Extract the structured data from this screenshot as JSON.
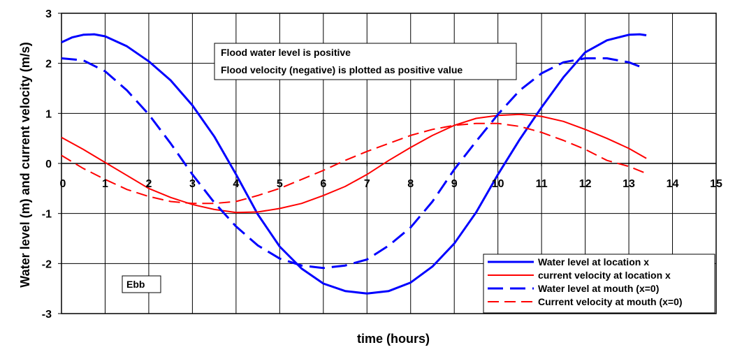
{
  "chart_data": {
    "type": "line",
    "xlabel": "time (hours)",
    "ylabel": "Water level (m) and current velocity (m/s)",
    "xlim": [
      0,
      15
    ],
    "ylim": [
      -3,
      3
    ],
    "xticks": [
      0,
      1,
      2,
      3,
      4,
      5,
      6,
      7,
      8,
      9,
      10,
      11,
      12,
      13,
      14,
      15
    ],
    "yticks": [
      -3,
      -2,
      -1,
      0,
      1,
      2,
      3
    ],
    "grid": true,
    "legend_position": "bottom-right",
    "annotations": [
      "Flood water level is positive",
      "Flood velocity (negative) is plotted as positive value"
    ],
    "label_ebb": "Ebb",
    "series": [
      {
        "name": "Water level at location x",
        "color": "#0000ff",
        "style": "solid",
        "x": [
          0,
          0.25,
          0.5,
          0.75,
          1,
          1.5,
          2,
          2.5,
          3,
          3.5,
          4,
          4.5,
          5,
          5.5,
          6,
          6.5,
          7,
          7.5,
          8,
          8.5,
          9,
          9.5,
          10,
          10.5,
          11,
          11.5,
          12,
          12.5,
          13,
          13.25,
          13.4
        ],
        "y": [
          2.42,
          2.52,
          2.57,
          2.58,
          2.54,
          2.34,
          2.04,
          1.66,
          1.16,
          0.54,
          -0.22,
          -1.02,
          -1.66,
          -2.1,
          -2.4,
          -2.55,
          -2.6,
          -2.55,
          -2.38,
          -2.06,
          -1.6,
          -0.98,
          -0.22,
          0.48,
          1.12,
          1.72,
          2.22,
          2.46,
          2.57,
          2.58,
          2.56
        ]
      },
      {
        "name": "current velocity at location x",
        "color": "#ff0000",
        "style": "solid",
        "x": [
          0,
          0.5,
          1,
          1.5,
          2,
          2.5,
          3,
          3.5,
          4,
          4.5,
          5,
          5.5,
          6,
          6.5,
          7,
          7.5,
          8,
          8.5,
          9,
          9.5,
          10,
          10.5,
          11,
          11.5,
          12,
          12.5,
          13,
          13.4
        ],
        "y": [
          0.52,
          0.28,
          0.02,
          -0.24,
          -0.5,
          -0.68,
          -0.82,
          -0.92,
          -0.98,
          -0.97,
          -0.9,
          -0.8,
          -0.64,
          -0.46,
          -0.22,
          0.06,
          0.32,
          0.56,
          0.76,
          0.9,
          0.96,
          0.98,
          0.94,
          0.84,
          0.68,
          0.5,
          0.3,
          0.1
        ]
      },
      {
        "name": "Water level at mouth (x=0)",
        "color": "#0000ff",
        "style": "dashed",
        "x": [
          0,
          0.5,
          1,
          1.5,
          2,
          2.5,
          3,
          3.5,
          4,
          4.5,
          5,
          5.5,
          6,
          6.5,
          7,
          7.5,
          8,
          8.5,
          9,
          9.5,
          10,
          10.5,
          11,
          11.5,
          12,
          12.5,
          13,
          13.3
        ],
        "y": [
          2.1,
          2.06,
          1.84,
          1.46,
          0.98,
          0.4,
          -0.22,
          -0.78,
          -1.26,
          -1.64,
          -1.9,
          -2.04,
          -2.09,
          -2.04,
          -1.92,
          -1.64,
          -1.28,
          -0.76,
          -0.12,
          0.44,
          0.98,
          1.46,
          1.8,
          2.02,
          2.1,
          2.1,
          2.02,
          1.92
        ]
      },
      {
        "name": "Current velocity at mouth (x=0)",
        "color": "#ff0000",
        "style": "dashed",
        "x": [
          0,
          0.5,
          1,
          1.5,
          2,
          2.5,
          3,
          3.5,
          4,
          4.5,
          5,
          5.5,
          6,
          6.5,
          7,
          7.5,
          8,
          8.5,
          9,
          9.5,
          10,
          10.5,
          11,
          11.5,
          12,
          12.5,
          13,
          13.4
        ],
        "y": [
          0.16,
          -0.1,
          -0.32,
          -0.52,
          -0.66,
          -0.76,
          -0.8,
          -0.8,
          -0.76,
          -0.64,
          -0.5,
          -0.32,
          -0.14,
          0.06,
          0.24,
          0.4,
          0.56,
          0.68,
          0.76,
          0.8,
          0.8,
          0.74,
          0.62,
          0.46,
          0.28,
          0.06,
          -0.06,
          -0.2
        ]
      }
    ]
  }
}
